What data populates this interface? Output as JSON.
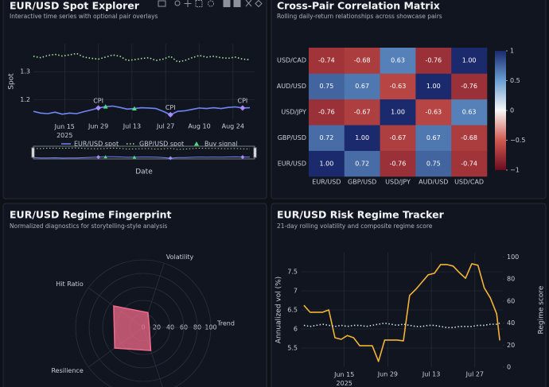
{
  "chart_data": [
    {
      "type": "line",
      "title": "EUR/USD Spot Explorer",
      "subtitle": "Interactive time series with optional pair overlays",
      "x_label": "Date",
      "y_label": "Spot",
      "x": [
        "2025-06-02",
        "2025-06-05",
        "2025-06-08",
        "2025-06-11",
        "2025-06-14",
        "2025-06-17",
        "2025-06-20",
        "2025-06-23",
        "2025-06-26",
        "2025-06-29",
        "2025-07-02",
        "2025-07-05",
        "2025-07-08",
        "2025-07-11",
        "2025-07-14",
        "2025-07-17",
        "2025-07-20",
        "2025-07-23",
        "2025-07-26",
        "2025-07-29",
        "2025-08-01",
        "2025-08-04",
        "2025-08-07",
        "2025-08-10",
        "2025-08-13",
        "2025-08-16",
        "2025-08-19",
        "2025-08-22",
        "2025-08-25",
        "2025-08-28",
        "2025-08-31"
      ],
      "xlim": [
        "2025-06-02",
        "2025-09-02"
      ],
      "xticks": [
        {
          "value": "2025-06-15",
          "label": "Jun 15\n2025"
        },
        {
          "value": "2025-06-29",
          "label": "Jun 29"
        },
        {
          "value": "2025-07-13",
          "label": "Jul 13"
        },
        {
          "value": "2025-07-27",
          "label": "Jul 27"
        },
        {
          "value": "2025-08-10",
          "label": "Aug 10"
        },
        {
          "value": "2025-08-24",
          "label": "Aug 24"
        }
      ],
      "ylim": [
        1.13,
        1.4
      ],
      "yticks": [
        1.2,
        1.3
      ],
      "grid": true,
      "legend": "bottom",
      "range_slider": true,
      "series": [
        {
          "name": "EUR/USD spot",
          "color": "#6f86f5",
          "values": [
            1.158,
            1.152,
            1.15,
            1.155,
            1.148,
            1.152,
            1.15,
            1.157,
            1.163,
            1.17,
            1.175,
            1.177,
            1.172,
            1.166,
            1.168,
            1.171,
            1.17,
            1.168,
            1.158,
            1.146,
            1.158,
            1.16,
            1.165,
            1.17,
            1.168,
            1.171,
            1.168,
            1.172,
            1.174,
            1.17,
            1.171
          ]
        },
        {
          "name": "GBP/USD spot",
          "color": "#a8e6a1",
          "dash": true,
          "values": [
            1.355,
            1.35,
            1.358,
            1.362,
            1.356,
            1.36,
            1.365,
            1.352,
            1.348,
            1.345,
            1.352,
            1.36,
            1.355,
            1.34,
            1.343,
            1.347,
            1.35,
            1.34,
            1.345,
            1.355,
            1.335,
            1.34,
            1.35,
            1.358,
            1.352,
            1.355,
            1.35,
            1.348,
            1.352,
            1.345,
            1.343
          ]
        }
      ],
      "markers": [
        {
          "name": "Buy signal",
          "color": "#4ade80",
          "x": [
            "2025-07-02",
            "2025-07-14"
          ],
          "values": [
            1.175,
            1.168
          ]
        }
      ],
      "annotations": [
        {
          "x": "2025-06-29",
          "y": 1.17,
          "text": "CPI"
        },
        {
          "x": "2025-07-29",
          "y": 1.146,
          "text": "CPI"
        },
        {
          "x": "2025-08-28",
          "y": 1.17,
          "text": "CPI"
        }
      ],
      "annotation_color": "#a78bfa"
    },
    {
      "type": "heatmap",
      "title": "Cross-Pair Correlation Matrix",
      "subtitle": "Rolling daily-return relationships across showcase pairs",
      "x_categories": [
        "EUR/USD",
        "GBP/USD",
        "USD/JPY",
        "AUD/USD",
        "USD/CAD"
      ],
      "y_categories": [
        "EUR/USD",
        "GBP/USD",
        "USD/JPY",
        "AUD/USD",
        "USD/CAD"
      ],
      "values": [
        [
          1,
          0.72,
          -0.76,
          0.75,
          -0.74
        ],
        [
          0.72,
          1,
          -0.67,
          0.67,
          -0.68
        ],
        [
          -0.76,
          -0.67,
          1,
          -0.63,
          0.63
        ],
        [
          0.75,
          0.67,
          -0.63,
          1,
          -0.76
        ],
        [
          -0.74,
          -0.68,
          0.63,
          -0.76,
          1
        ]
      ],
      "value_labels": [
        [
          "1.00",
          "0.72",
          "-0.76",
          "0.75",
          "-0.74"
        ],
        [
          "0.72",
          "1.00",
          "-0.67",
          "0.67",
          "-0.68"
        ],
        [
          "-0.76",
          "-0.67",
          "1.00",
          "-0.63",
          "0.63"
        ],
        [
          "0.75",
          "0.67",
          "-0.63",
          "1.00",
          "-0.76"
        ],
        [
          "-0.74",
          "-0.68",
          "0.63",
          "-0.76",
          "1.00"
        ]
      ],
      "zlim": [
        -1,
        1
      ],
      "colorbar_ticks": [
        1,
        0.5,
        0,
        {
          "value": -0.5,
          "label": "−0.5"
        },
        {
          "value": -1,
          "label": "−1"
        }
      ],
      "colorscale": [
        [
          -1,
          "#6b0c22"
        ],
        [
          -0.5,
          "#d0594f"
        ],
        [
          0,
          "#f7f7f7"
        ],
        [
          0.5,
          "#6a9fd3"
        ],
        [
          1,
          "#1a2a6c"
        ]
      ]
    },
    {
      "type": "radar",
      "title": "EUR/USD Regime Fingerprint",
      "subtitle": "Normalized diagnostics for storytelling-style analysis",
      "categories": [
        "Trend",
        "Volatility",
        "Hit Ratio",
        "Resilience",
        null
      ],
      "values": [
        9,
        23,
        54,
        52,
        36
      ],
      "rlim": [
        0,
        100
      ],
      "rticks": [
        0,
        20,
        40,
        60,
        80,
        100
      ],
      "color": "#f06a8a"
    },
    {
      "type": "line",
      "title": "EUR/USD Risk Regime Tracker",
      "subtitle": "21-day rolling volatility and composite regime score",
      "y_label": "Annualized vol (%)",
      "y2_label": "Regime score",
      "x": [
        "2025-06-02",
        "2025-06-04",
        "2025-06-06",
        "2025-06-08",
        "2025-06-10",
        "2025-06-12",
        "2025-06-14",
        "2025-06-16",
        "2025-06-18",
        "2025-06-20",
        "2025-06-22",
        "2025-06-24",
        "2025-06-26",
        "2025-06-28",
        "2025-06-30",
        "2025-07-02",
        "2025-07-04",
        "2025-07-06",
        "2025-07-08",
        "2025-07-10",
        "2025-07-12",
        "2025-07-14",
        "2025-07-16",
        "2025-07-18",
        "2025-07-20",
        "2025-07-22",
        "2025-07-24",
        "2025-07-26",
        "2025-07-28",
        "2025-07-30",
        "2025-08-01",
        "2025-08-03",
        "2025-08-04"
      ],
      "xlim": [
        "2025-06-01",
        "2025-08-05"
      ],
      "xticks": [
        {
          "value": "2025-06-15",
          "label": "Jun 15\n2025"
        },
        {
          "value": "2025-06-29",
          "label": "Jun 29"
        },
        {
          "value": "2025-07-13",
          "label": "Jul 13"
        },
        {
          "value": "2025-07-27",
          "label": "Jul 27"
        }
      ],
      "ylim": [
        5,
        8
      ],
      "yticks": [
        5.5,
        6,
        6.5,
        7,
        7.5
      ],
      "y2lim": [
        0,
        104
      ],
      "y2ticks": [
        0,
        20,
        40,
        60,
        80,
        100
      ],
      "grid": true,
      "series": [
        {
          "color": "#f5b335",
          "values": [
            6.62,
            6.44,
            6.44,
            6.44,
            6.5,
            5.77,
            5.73,
            5.83,
            5.77,
            5.56,
            5.56,
            5.56,
            5.15,
            5.71,
            5.71,
            5.71,
            5.69,
            6.88,
            7.04,
            7.23,
            7.42,
            7.46,
            7.69,
            7.69,
            7.65,
            7.48,
            7.33,
            7.71,
            7.67,
            7.08,
            6.81,
            6.4,
            5.7
          ]
        },
        {
          "color": "#cfe3ee",
          "dash": true,
          "axis": "y2",
          "values": [
            38,
            37,
            38,
            39,
            38,
            37,
            38,
            37,
            38,
            38,
            37,
            38,
            39,
            40,
            39,
            38,
            39,
            38,
            37,
            37,
            38,
            38,
            37,
            36,
            36,
            37,
            37,
            37,
            38,
            38,
            39,
            39,
            40
          ]
        }
      ]
    }
  ]
}
